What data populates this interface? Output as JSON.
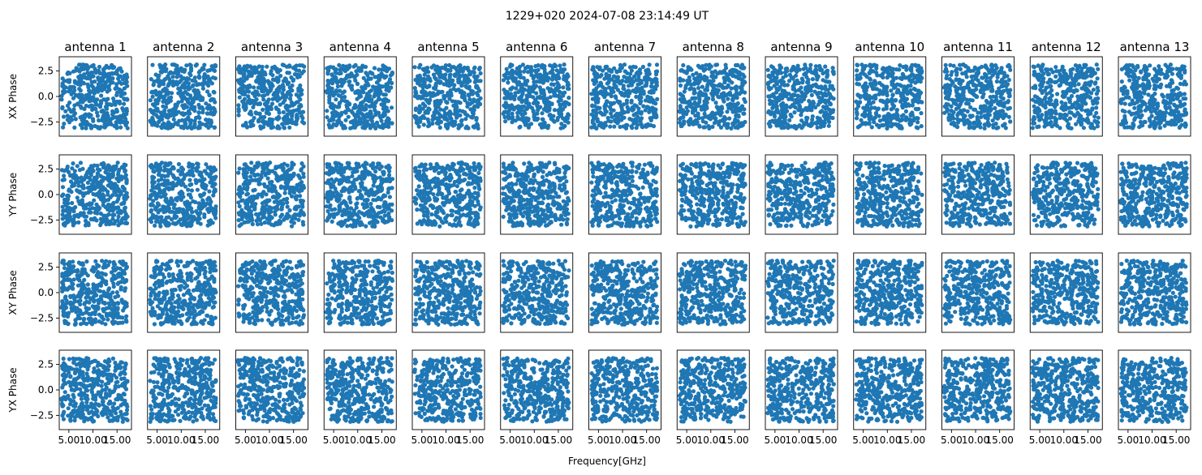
{
  "figure": {
    "suptitle": "1229+020 2024-07-08 23:14:49 UT",
    "xlabel": "Frequency[GHz]",
    "marker_color": "#1f77b4"
  },
  "chart_data": {
    "type": "scatter",
    "title": "1229+020 2024-07-08 23:14:49 UT",
    "xlabel": "Frequency[GHz]",
    "grid": false,
    "layout": "4 rows x 13 columns of small-multiple scatter panels, shared axes",
    "columns": [
      "antenna 1",
      "antenna 2",
      "antenna 3",
      "antenna 4",
      "antenna 5",
      "antenna 6",
      "antenna 7",
      "antenna 8",
      "antenna 9",
      "antenna 10",
      "antenna 11",
      "antenna 12",
      "antenna 13"
    ],
    "rows": [
      {
        "name": "XX",
        "ylabel": "XX Phase"
      },
      {
        "name": "YY",
        "ylabel": "YY Phase"
      },
      {
        "name": "XY",
        "ylabel": "XY Phase"
      },
      {
        "name": "YX",
        "ylabel": "YX Phase"
      }
    ],
    "xlim": [
      3.0,
      18.0
    ],
    "ylim": [
      -3.9,
      3.9
    ],
    "xticks": [
      5.0,
      10.0,
      15.0
    ],
    "xtick_labels": [
      "5.00",
      "10.00",
      "15.00"
    ],
    "yticks": [
      -2.5,
      0.0,
      2.5
    ],
    "ytick_labels": [
      "−2.5",
      "0.0",
      "2.5"
    ],
    "x_range_of_points": [
      3.5,
      17.2
    ],
    "y_range_of_points": [
      -3.14,
      3.14
    ],
    "points_per_panel": 400,
    "distribution": "phases uniformly scattered over [-pi, pi] across the frequency band (noise-like)"
  }
}
